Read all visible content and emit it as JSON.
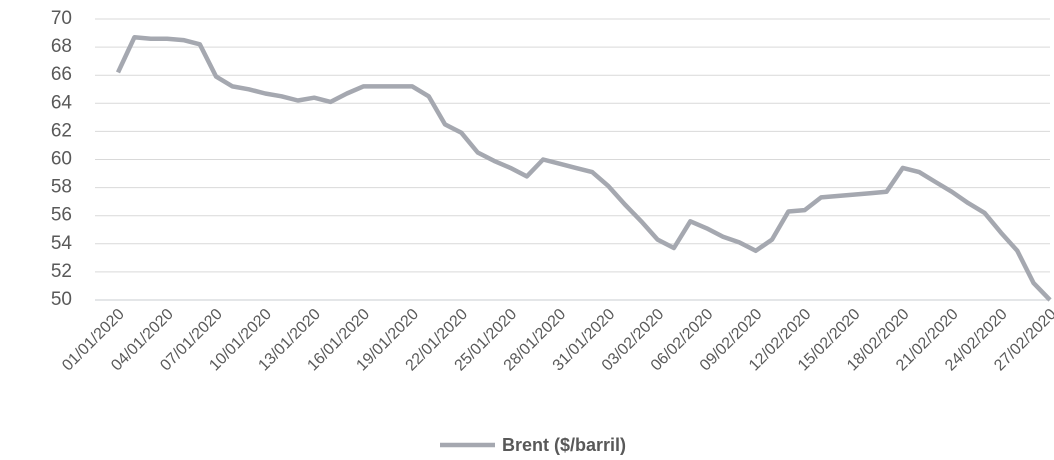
{
  "chart_data": {
    "type": "line",
    "categories": [
      "01/01/2020",
      null,
      null,
      "04/01/2020",
      null,
      null,
      "07/01/2020",
      null,
      null,
      "10/01/2020",
      null,
      null,
      "13/01/2020",
      null,
      null,
      "16/01/2020",
      null,
      null,
      "19/01/2020",
      null,
      null,
      "22/01/2020",
      null,
      null,
      "25/01/2020",
      null,
      null,
      "28/01/2020",
      null,
      null,
      "31/01/2020",
      null,
      null,
      "03/02/2020",
      null,
      null,
      "06/02/2020",
      null,
      null,
      "09/02/2020",
      null,
      null,
      "12/02/2020",
      null,
      null,
      "15/02/2020",
      null,
      null,
      "18/02/2020",
      null,
      null,
      "21/02/2020",
      null,
      null,
      "24/02/2020",
      null,
      null,
      "27/02/2020"
    ],
    "series": [
      {
        "name": "Brent ($/barril)",
        "color": "#a5a8b0",
        "values": [
          66.2,
          68.7,
          68.6,
          68.6,
          68.5,
          68.2,
          65.9,
          65.2,
          65.0,
          64.7,
          64.5,
          64.2,
          64.4,
          64.1,
          64.7,
          65.2,
          65.2,
          65.2,
          65.2,
          64.5,
          62.5,
          61.9,
          60.5,
          59.9,
          59.4,
          58.8,
          60.0,
          59.7,
          59.4,
          59.1,
          58.1,
          56.8,
          55.6,
          54.3,
          53.7,
          55.6,
          55.1,
          54.5,
          54.1,
          53.5,
          54.3,
          56.3,
          56.4,
          57.3,
          57.4,
          57.5,
          57.6,
          57.7,
          59.4,
          59.1,
          58.4,
          57.7,
          56.9,
          56.2,
          54.8,
          53.5,
          51.2,
          50.0
        ]
      }
    ],
    "ylim": [
      50,
      70
    ],
    "yticks": [
      50,
      52,
      54,
      56,
      58,
      60,
      62,
      64,
      66,
      68,
      70
    ],
    "grid": true,
    "legend": "bottom"
  }
}
